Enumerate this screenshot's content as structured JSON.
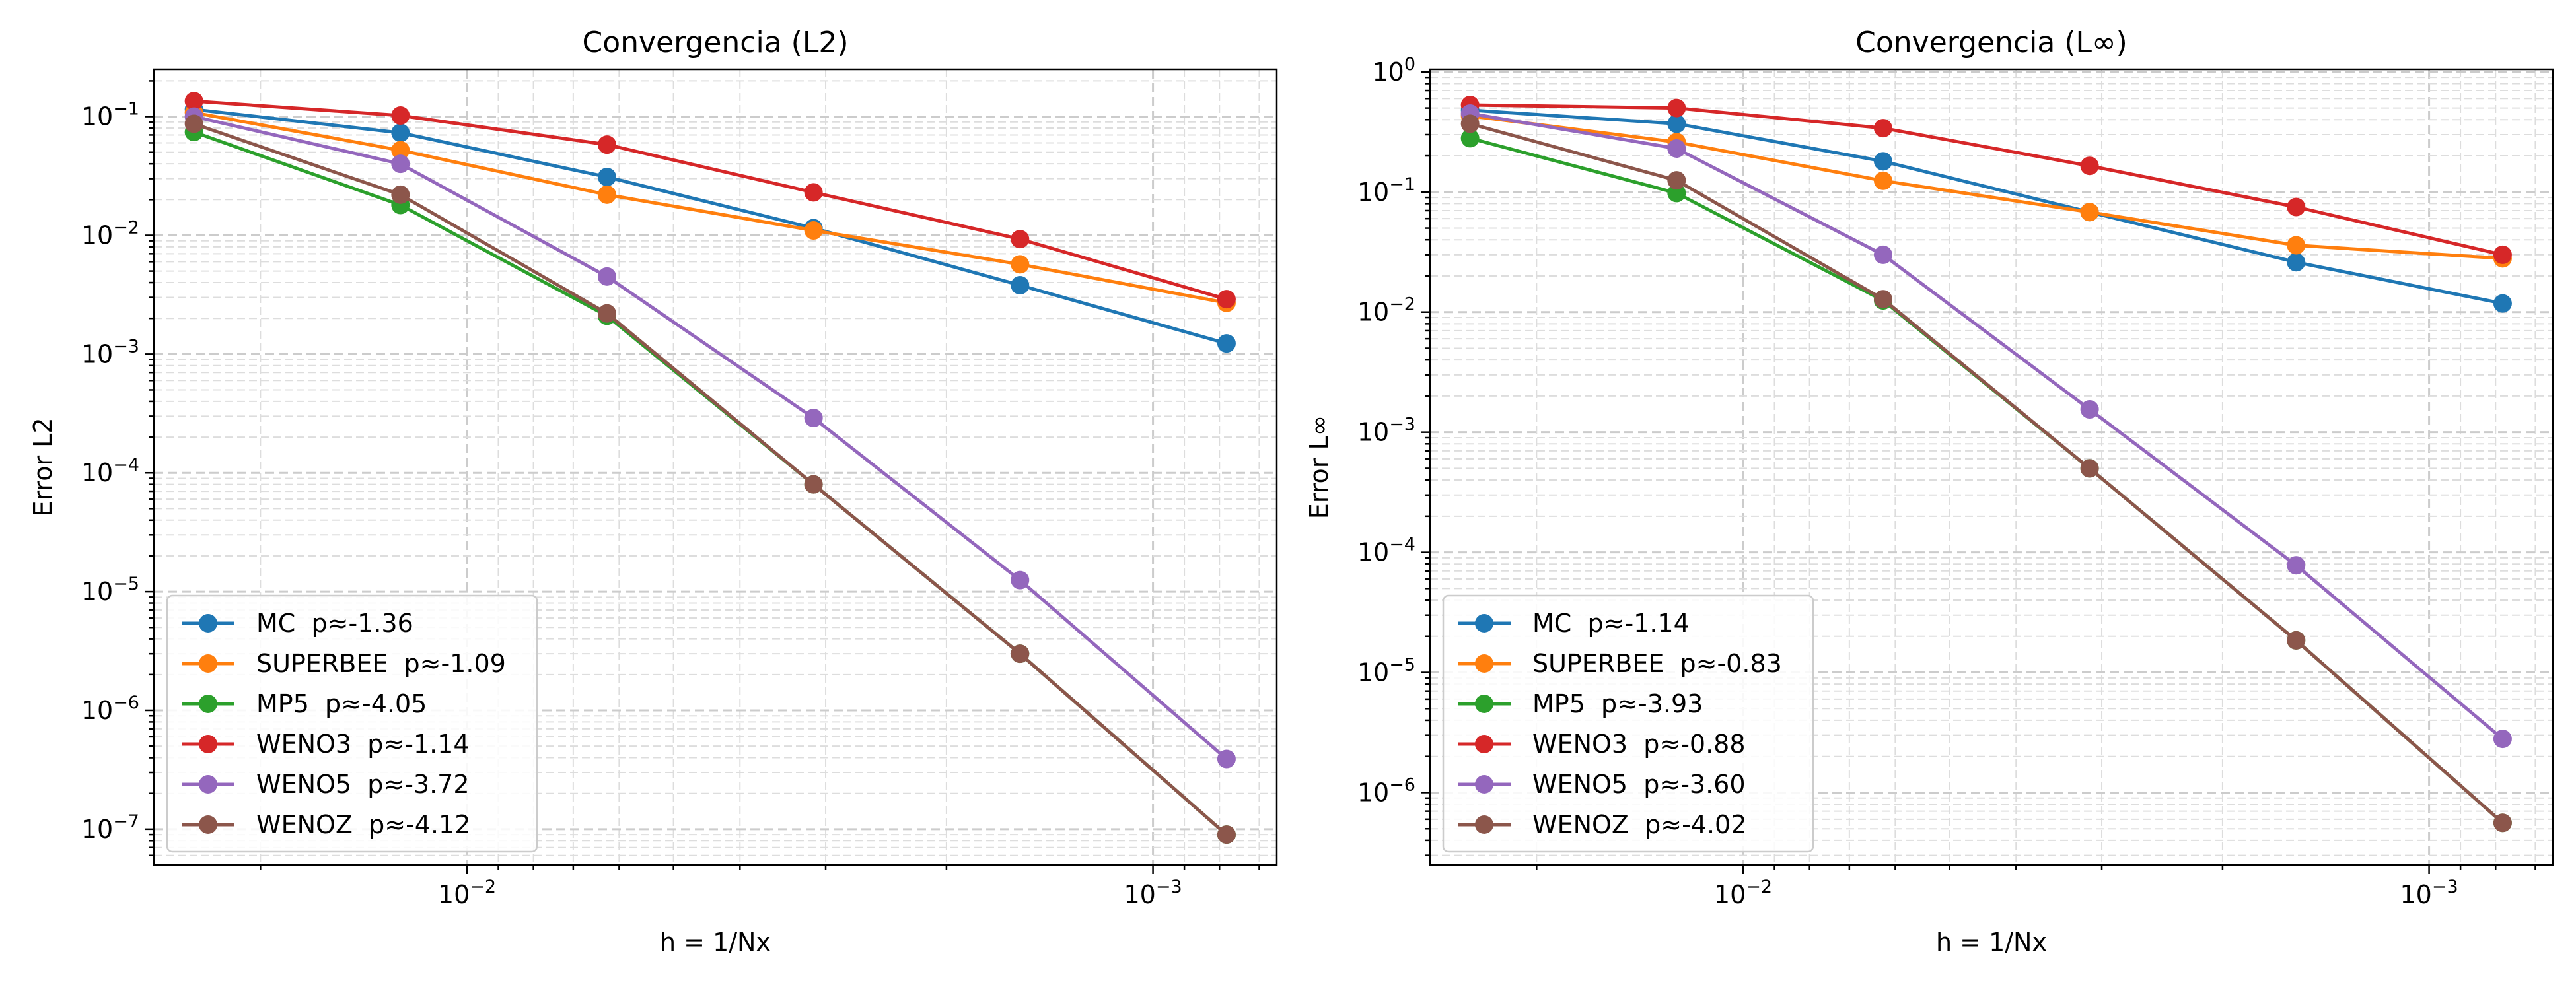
{
  "chart_data": [
    {
      "type": "line",
      "title": "Convergencia (L2)",
      "xlabel": "h = 1/Nx",
      "ylabel": "Error L2",
      "x": [
        0.025,
        0.0125,
        0.00625,
        0.003125,
        0.0015625,
        0.00078125
      ],
      "x_scale": "log",
      "y_scale": "log",
      "x_inverted": true,
      "xlim": [
        0.0286,
        0.00066
      ],
      "ylim": [
        5e-08,
        0.25
      ],
      "x_ticks": [
        {
          "value": 0.01,
          "mantissa": "10",
          "exp": "−2"
        },
        {
          "value": 0.001,
          "mantissa": "10",
          "exp": "−3"
        }
      ],
      "y_ticks": [
        {
          "value": 1e-07,
          "mantissa": "10",
          "exp": "−7"
        },
        {
          "value": 1e-06,
          "mantissa": "10",
          "exp": "−6"
        },
        {
          "value": 1e-05,
          "mantissa": "10",
          "exp": "−5"
        },
        {
          "value": 0.0001,
          "mantissa": "10",
          "exp": "−4"
        },
        {
          "value": 0.001,
          "mantissa": "10",
          "exp": "−3"
        },
        {
          "value": 0.01,
          "mantissa": "10",
          "exp": "−2"
        },
        {
          "value": 0.1,
          "mantissa": "10",
          "exp": "−1"
        }
      ],
      "grid": "both",
      "legend_position": "lower-left",
      "series": [
        {
          "name": "MC  p≈-1.36",
          "color": "#1f77b4",
          "values": [
            0.115,
            0.073,
            0.031,
            0.0115,
            0.0038,
            0.00123
          ]
        },
        {
          "name": "SUPERBEE  p≈-1.09",
          "color": "#ff7f0e",
          "values": [
            0.108,
            0.052,
            0.022,
            0.011,
            0.0057,
            0.0027
          ]
        },
        {
          "name": "MP5  p≈-4.05",
          "color": "#2ca02c",
          "values": [
            0.074,
            0.018,
            0.0021,
            8e-05,
            3e-06,
            9e-08
          ]
        },
        {
          "name": "WENO3  p≈-1.14",
          "color": "#d62728",
          "values": [
            0.135,
            0.102,
            0.058,
            0.023,
            0.0093,
            0.0029
          ]
        },
        {
          "name": "WENO5  p≈-3.72",
          "color": "#9467bd",
          "values": [
            0.1,
            0.04,
            0.0045,
            0.00029,
            1.25e-05,
            3.9e-07
          ]
        },
        {
          "name": "WENOZ  p≈-4.12",
          "color": "#8c564b",
          "values": [
            0.087,
            0.022,
            0.0022,
            8e-05,
            3e-06,
            9e-08
          ]
        }
      ]
    },
    {
      "type": "line",
      "title": "Convergencia (L∞)",
      "xlabel": "h = 1/Nx",
      "ylabel": "Error L∞",
      "x": [
        0.025,
        0.0125,
        0.00625,
        0.003125,
        0.0015625,
        0.00078125
      ],
      "x_scale": "log",
      "y_scale": "log",
      "x_inverted": true,
      "xlim": [
        0.0286,
        0.00066
      ],
      "ylim": [
        2.5e-07,
        1.05
      ],
      "x_ticks": [
        {
          "value": 0.01,
          "mantissa": "10",
          "exp": "−2"
        },
        {
          "value": 0.001,
          "mantissa": "10",
          "exp": "−3"
        }
      ],
      "y_ticks": [
        {
          "value": 1e-06,
          "mantissa": "10",
          "exp": "−6"
        },
        {
          "value": 1e-05,
          "mantissa": "10",
          "exp": "−5"
        },
        {
          "value": 0.0001,
          "mantissa": "10",
          "exp": "−4"
        },
        {
          "value": 0.001,
          "mantissa": "10",
          "exp": "−3"
        },
        {
          "value": 0.01,
          "mantissa": "10",
          "exp": "−2"
        },
        {
          "value": 0.1,
          "mantissa": "10",
          "exp": "−1"
        },
        {
          "value": 1,
          "mantissa": "10",
          "exp": "0"
        }
      ],
      "grid": "both",
      "legend_position": "lower-left",
      "series": [
        {
          "name": "MC  p≈-1.14",
          "color": "#1f77b4",
          "values": [
            0.48,
            0.37,
            0.18,
            0.068,
            0.026,
            0.0118
          ]
        },
        {
          "name": "SUPERBEE  p≈-0.83",
          "color": "#ff7f0e",
          "values": [
            0.43,
            0.26,
            0.124,
            0.068,
            0.036,
            0.028
          ]
        },
        {
          "name": "MP5  p≈-3.93",
          "color": "#2ca02c",
          "values": [
            0.28,
            0.098,
            0.0125,
            0.0005,
            1.85e-05,
            5.6e-07
          ]
        },
        {
          "name": "WENO3  p≈-0.88",
          "color": "#d62728",
          "values": [
            0.53,
            0.5,
            0.34,
            0.165,
            0.075,
            0.03
          ]
        },
        {
          "name": "WENO5  p≈-3.60",
          "color": "#9467bd",
          "values": [
            0.45,
            0.23,
            0.03,
            0.00155,
            7.8e-05,
            2.8e-06
          ]
        },
        {
          "name": "WENOZ  p≈-4.02",
          "color": "#8c564b",
          "values": [
            0.37,
            0.125,
            0.0128,
            0.0005,
            1.85e-05,
            5.6e-07
          ]
        }
      ]
    }
  ]
}
